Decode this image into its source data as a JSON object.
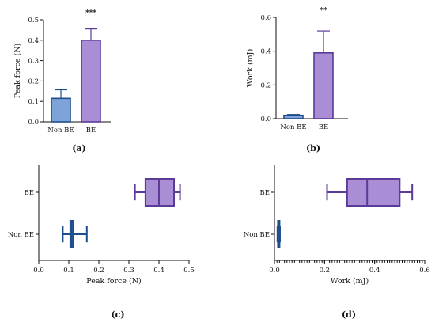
{
  "chart_data": [
    {
      "panel": "(a)",
      "type": "bar",
      "categories": [
        "Non BE",
        "BE"
      ],
      "values": [
        0.115,
        0.4
      ],
      "error_upper": [
        0.157,
        0.455
      ],
      "colors": [
        "#7ea3d8",
        "#a98ed6"
      ],
      "edge_colors": [
        "#1f4e8c",
        "#5b3a98"
      ],
      "ylabel": "Peak force (N)",
      "ylim": [
        0,
        0.5
      ],
      "yticks": [
        "0.0",
        "0.1",
        "0.2",
        "0.3",
        "0.4",
        "0.5"
      ],
      "significance": "***",
      "grid": false
    },
    {
      "panel": "(b)",
      "type": "bar",
      "categories": [
        "Non BE",
        "BE"
      ],
      "values": [
        0.02,
        0.39
      ],
      "error_upper": [
        0.025,
        0.52
      ],
      "colors": [
        "#7ea3d8",
        "#a98ed6"
      ],
      "edge_colors": [
        "#1f4e8c",
        "#5b3a98"
      ],
      "ylabel": "Work (mJ)",
      "ylim": [
        0,
        0.6
      ],
      "yticks": [
        "0.0",
        "0.2",
        "0.4",
        "0.6"
      ],
      "significance": "**",
      "grid": false
    },
    {
      "panel": "(c)",
      "type": "box",
      "orientation": "horizontal",
      "categories": [
        "BE",
        "Non BE"
      ],
      "boxes": [
        {
          "category": "BE",
          "min": 0.32,
          "q1": 0.355,
          "median": 0.4,
          "q3": 0.45,
          "max": 0.47
        },
        {
          "category": "Non BE",
          "min": 0.08,
          "q1": 0.105,
          "median": 0.11,
          "q3": 0.115,
          "max": 0.16
        }
      ],
      "colors": [
        "#a98ed6",
        "#7ea3d8"
      ],
      "edge_colors": [
        "#5b3a98",
        "#1f4e8c"
      ],
      "xlabel": "Peak force (N)",
      "xlim": [
        0,
        0.5
      ],
      "xticks": [
        "0.0",
        "0.1",
        "0.2",
        "0.3",
        "0.4",
        "0.5"
      ],
      "grid": false
    },
    {
      "panel": "(d)",
      "type": "box",
      "orientation": "horizontal",
      "categories": [
        "BE",
        "Non BE"
      ],
      "boxes": [
        {
          "category": "BE",
          "min": 0.21,
          "q1": 0.29,
          "median": 0.37,
          "q3": 0.5,
          "max": 0.55
        },
        {
          "category": "Non BE",
          "min": 0.012,
          "q1": 0.014,
          "median": 0.017,
          "q3": 0.02,
          "max": 0.022
        }
      ],
      "colors": [
        "#a98ed6",
        "#7ea3d8"
      ],
      "edge_colors": [
        "#5b3a98",
        "#1f4e8c"
      ],
      "xlabel": "Work (mJ)",
      "xlim": [
        0,
        0.6
      ],
      "xticks": [
        "0.0",
        "0.2",
        "0.4",
        "0.6"
      ],
      "grid": false
    }
  ]
}
